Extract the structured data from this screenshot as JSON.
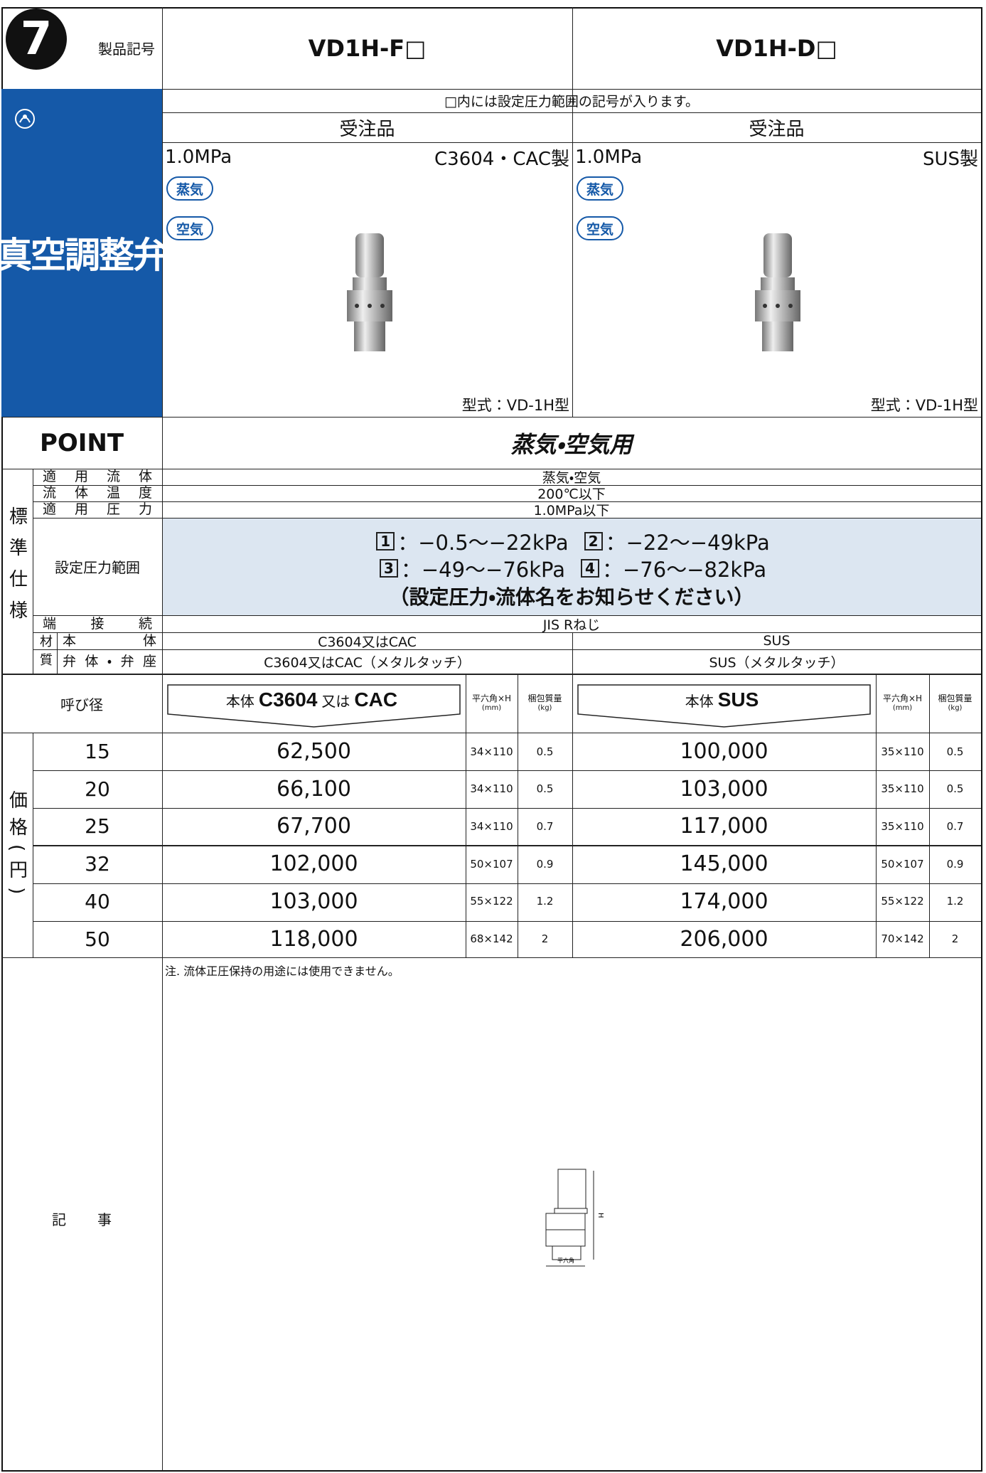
{
  "header": {
    "section_number": "7",
    "code_label": "製品記号",
    "models": [
      "VD1H-F□",
      "VD1H-D□"
    ],
    "note": "□内には設定圧力範囲の記号が入ります。",
    "order_type": [
      "受注品",
      "受注品"
    ]
  },
  "sidebar": {
    "title": "真空調整弁"
  },
  "products": [
    {
      "pressure": "1.0MPa",
      "material": "C3604・CAC製",
      "media": [
        "蒸気",
        "空気"
      ],
      "model_type": "型式：VD-1H型"
    },
    {
      "pressure": "1.0MPa",
      "material": "SUS製",
      "media": [
        "蒸気",
        "空気"
      ],
      "model_type": "型式：VD-1H型"
    }
  ],
  "point": {
    "label": "POINT",
    "text": "蒸気・空気用"
  },
  "specs": {
    "group_label": "標準仕様",
    "rows": [
      {
        "label": "適用流体",
        "value": "蒸気・空気"
      },
      {
        "label": "流体温度",
        "value": "200℃以下"
      },
      {
        "label": "適用圧力",
        "value": "1.0MPa以下"
      }
    ],
    "setting_range": {
      "label": "設定圧力範囲",
      "items": [
        {
          "code": "1",
          "range": "：−0.5〜−22kPa"
        },
        {
          "code": "2",
          "range": "：−22〜−49kPa"
        },
        {
          "code": "3",
          "range": "：−49〜−76kPa"
        },
        {
          "code": "4",
          "range": "：−76〜−82kPa"
        }
      ],
      "note": "（設定圧力・流体名をお知らせください）"
    },
    "connection": {
      "label": "端接続",
      "value": "JIS Rねじ"
    },
    "material": {
      "label": "材質",
      "rows": [
        {
          "label": "本体",
          "values": [
            "C3604又はCAC",
            "SUS"
          ]
        },
        {
          "label": "弁体・弁座",
          "values": [
            "C3604又はCAC（メタルタッチ）",
            "SUS（メタルタッチ）"
          ]
        }
      ]
    }
  },
  "price": {
    "group_label": "価格(円)",
    "header": {
      "nominal": "呼び径",
      "body_c": [
        "本体",
        "C3604",
        "又は",
        "CAC"
      ],
      "body_s": [
        "本体",
        "SUS"
      ],
      "dim": [
        "平六角×H",
        "(mm)"
      ],
      "weight": [
        "梱包質量",
        "(kg)"
      ]
    },
    "rows": [
      [
        "15",
        "62,500",
        "34×110",
        "0.5",
        "100,000",
        "35×110",
        "0.5"
      ],
      [
        "20",
        "66,100",
        "34×110",
        "0.5",
        "103,000",
        "35×110",
        "0.5"
      ],
      [
        "25",
        "67,700",
        "34×110",
        "0.7",
        "117,000",
        "35×110",
        "0.7"
      ],
      [
        "32",
        "102,000",
        "50×107",
        "0.9",
        "145,000",
        "50×107",
        "0.9"
      ],
      [
        "40",
        "103,000",
        "55×122",
        "1.2",
        "174,000",
        "55×122",
        "1.2"
      ],
      [
        "50",
        "118,000",
        "68×142",
        "2",
        "206,000",
        "70×142",
        "2"
      ]
    ]
  },
  "notes": {
    "label": "記事",
    "text": "注. 流体正圧保持の用途には使用できません。",
    "diagram_h": "H",
    "diagram_hex": "平六角"
  }
}
